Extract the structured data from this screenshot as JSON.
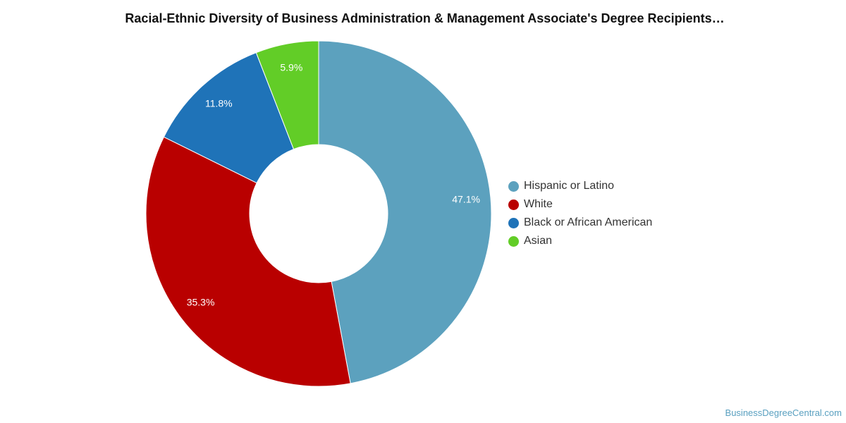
{
  "chart_data": {
    "type": "pie",
    "title": "Racial-Ethnic Diversity of Business Administration & Management Associate's Degree Recipients…",
    "categories": [
      "Hispanic or Latino",
      "White",
      "Black or African American",
      "Asian"
    ],
    "values": [
      47.1,
      35.3,
      11.8,
      5.9
    ],
    "value_labels": [
      "47.1%",
      "35.3%",
      "11.8%",
      "5.9%"
    ],
    "colors": [
      "#5ca1be",
      "#b90000",
      "#1f73b8",
      "#62cd27"
    ],
    "donut": true,
    "legend_position": "right"
  },
  "source": "BusinessDegreeCentral.com"
}
